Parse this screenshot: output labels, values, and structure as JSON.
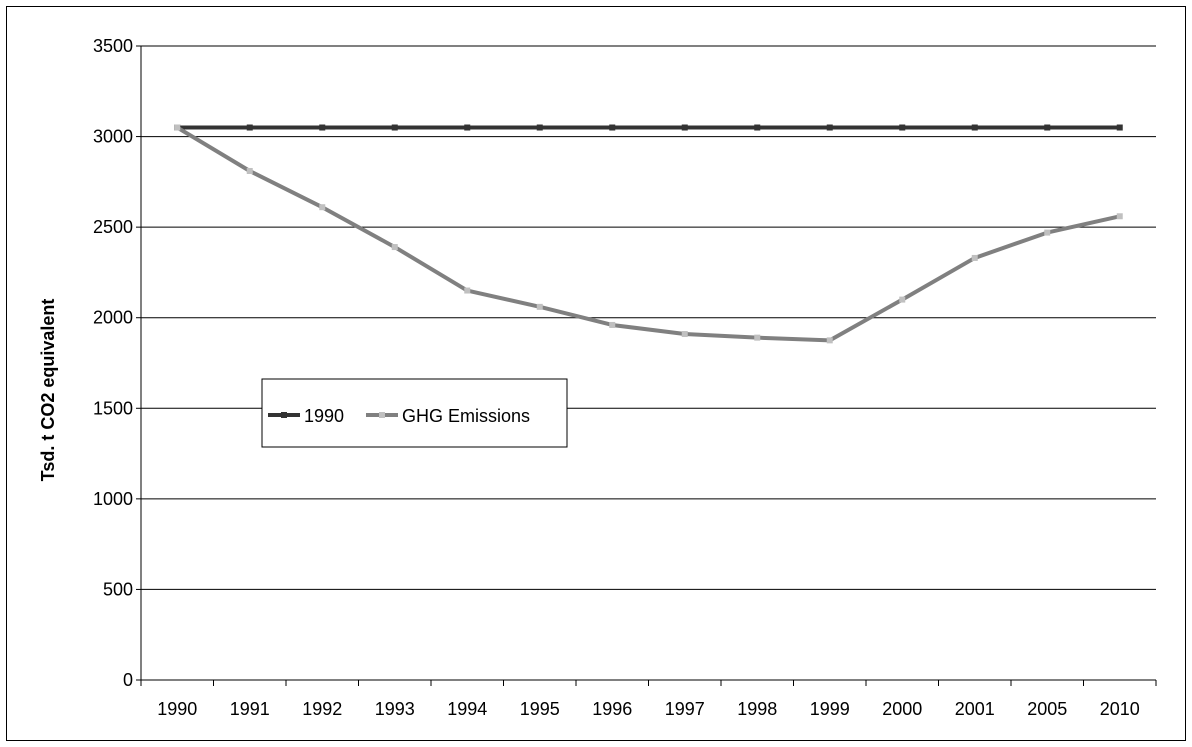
{
  "chart_data": {
    "type": "line",
    "title": "",
    "xlabel": "",
    "ylabel": "Tsd. t CO2 equivalent",
    "categories": [
      "1990",
      "1991",
      "1992",
      "1993",
      "1994",
      "1995",
      "1996",
      "1997",
      "1998",
      "1999",
      "2000",
      "2001",
      "2005",
      "2010"
    ],
    "ylim": [
      0,
      3500
    ],
    "yticks": [
      0,
      500,
      1000,
      1500,
      2000,
      2500,
      3000,
      3500
    ],
    "grid": true,
    "legend_position": "center-left",
    "series": [
      {
        "name": "1990",
        "color": "#333333",
        "values": [
          3050,
          3050,
          3050,
          3050,
          3050,
          3050,
          3050,
          3050,
          3050,
          3050,
          3050,
          3050,
          3050,
          3050
        ]
      },
      {
        "name": "GHG Emissions",
        "color": "#808080",
        "marker_color": "#c0c0c0",
        "values": [
          3050,
          2810,
          2610,
          2390,
          2150,
          2060,
          1960,
          1910,
          1890,
          1875,
          2100,
          2330,
          2470,
          2560
        ]
      }
    ]
  }
}
